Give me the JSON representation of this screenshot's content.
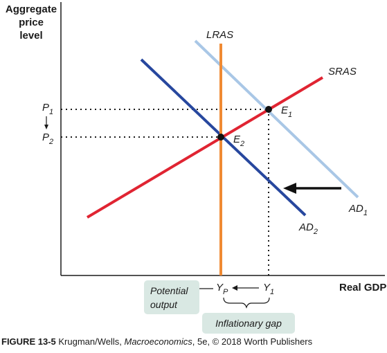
{
  "y_axis_label_lines": [
    "Aggregate",
    "price",
    "level"
  ],
  "x_axis_label": "Real GDP",
  "curves": {
    "lras": "LRAS",
    "sras": "SRAS",
    "ad1_base": "AD",
    "ad1_sub": "1",
    "ad2_base": "AD",
    "ad2_sub": "2"
  },
  "points": {
    "e1_base": "E",
    "e1_sub": "1",
    "e2_base": "E",
    "e2_sub": "2"
  },
  "price_labels": {
    "p1_base": "P",
    "p1_sub": "1",
    "p2_base": "P",
    "p2_sub": "2"
  },
  "output_labels": {
    "yp_base": "Y",
    "yp_sub": "P",
    "y1_base": "Y",
    "y1_sub": "1"
  },
  "annotations": {
    "potential_output_lines": [
      "Potential",
      "output"
    ],
    "inflationary_gap": "Inflationary gap"
  },
  "caption": {
    "figure": "FIGURE 13-5",
    "authors": " Krugman/Wells, ",
    "book": "Macroeconomics",
    "rest": ", 5e, © 2018 Worth Publishers"
  },
  "colors": {
    "lras": "#f08a33",
    "sras": "#e02432",
    "ad1": "#a9c7e6",
    "ad2": "#27479e",
    "pill": "#d9e8e3",
    "axis": "#1a1a1a"
  }
}
